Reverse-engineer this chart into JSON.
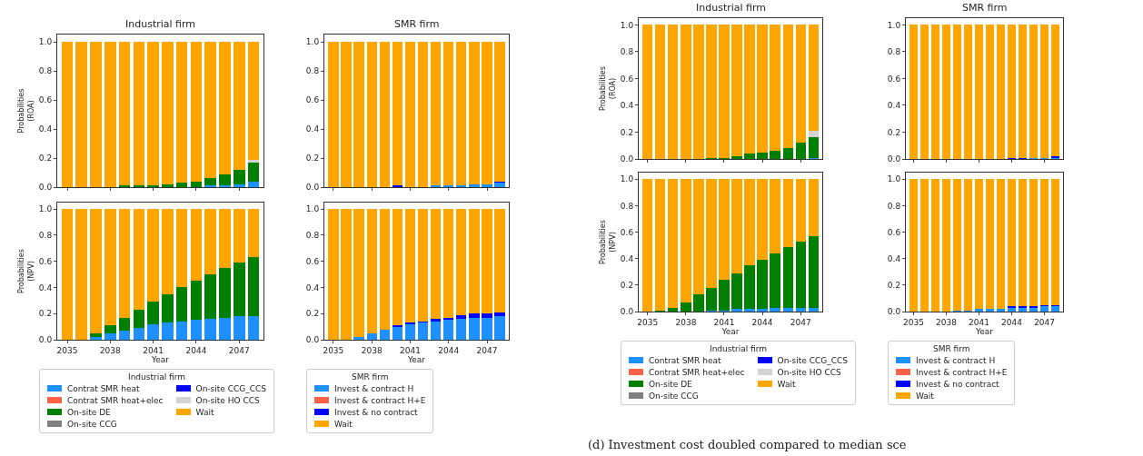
{
  "chart_data": [
    {
      "type": "bar",
      "stacked": true,
      "title": "Industrial firm",
      "ylabel": "Probabilities\n(ROA)",
      "tick_labels": "y",
      "legend": false,
      "x": [
        2035,
        2036,
        2037,
        2038,
        2039,
        2040,
        2041,
        2042,
        2043,
        2044,
        2045,
        2046,
        2047,
        2048
      ],
      "xlim": [
        2034.3,
        2048.7
      ],
      "xticks": [
        2035,
        2038,
        2041,
        2044,
        2047
      ],
      "ylim": [
        0,
        1.05
      ],
      "yticks": [
        {
          "value": 0,
          "label": "0.0"
        },
        {
          "value": 0.2,
          "label": "0.2"
        },
        {
          "value": 0.4,
          "label": "0.4"
        },
        {
          "value": 0.6,
          "label": "0.6"
        },
        {
          "value": 0.8,
          "label": "0.8"
        },
        {
          "value": 1,
          "label": "1.0"
        }
      ],
      "series": [
        {
          "color": "#1e90ff",
          "values": [
            0,
            0,
            0,
            0,
            0,
            0,
            0,
            0,
            0,
            0,
            0.01,
            0.01,
            0.02,
            0.04
          ]
        },
        {
          "color": "#008000",
          "values": [
            0,
            0,
            0,
            0,
            0.01,
            0.01,
            0.01,
            0.02,
            0.03,
            0.04,
            0.05,
            0.08,
            0.1,
            0.13
          ]
        },
        {
          "color": "#d3d3d3",
          "values": [
            0,
            0,
            0,
            0,
            0,
            0,
            0,
            0,
            0,
            0,
            0,
            0,
            0,
            0.02
          ]
        },
        {
          "color": "#ffa500",
          "values": [
            1,
            1,
            1,
            1,
            0.99,
            0.99,
            0.99,
            0.98,
            0.97,
            0.96,
            0.94,
            0.91,
            0.88,
            0.81
          ]
        }
      ]
    },
    {
      "type": "bar",
      "stacked": true,
      "title": "SMR firm",
      "tick_labels": "y",
      "legend": false,
      "x": [
        2035,
        2036,
        2037,
        2038,
        2039,
        2040,
        2041,
        2042,
        2043,
        2044,
        2045,
        2046,
        2047,
        2048
      ],
      "xlim": [
        2034.3,
        2048.7
      ],
      "xticks": [
        2035,
        2038,
        2041,
        2044,
        2047
      ],
      "ylim": [
        0,
        1.05
      ],
      "yticks": [
        {
          "value": 0,
          "label": "0.0"
        },
        {
          "value": 0.2,
          "label": "0.2"
        },
        {
          "value": 0.4,
          "label": "0.4"
        },
        {
          "value": 0.6,
          "label": "0.6"
        },
        {
          "value": 0.8,
          "label": "0.8"
        },
        {
          "value": 1,
          "label": "1.0"
        }
      ],
      "series": [
        {
          "color": "#1e90ff",
          "values": [
            0,
            0,
            0,
            0,
            0,
            0,
            0,
            0,
            0.01,
            0.01,
            0.01,
            0.02,
            0.02,
            0.03
          ]
        },
        {
          "color": "#0000ff",
          "values": [
            0,
            0,
            0,
            0,
            0,
            0.01,
            0,
            0,
            0,
            0,
            0,
            0,
            0,
            0.01
          ]
        },
        {
          "color": "#ffa500",
          "values": [
            1,
            1,
            1,
            1,
            1,
            0.99,
            1,
            1,
            0.99,
            0.99,
            0.99,
            0.98,
            0.98,
            0.96
          ]
        }
      ]
    },
    {
      "type": "bar",
      "stacked": true,
      "ylabel": "Probabilities\n(NPV)",
      "xlabel": "Year",
      "legend": "bottom",
      "legend_title": "Industrial firm",
      "x": [
        2035,
        2036,
        2037,
        2038,
        2039,
        2040,
        2041,
        2042,
        2043,
        2044,
        2045,
        2046,
        2047,
        2048
      ],
      "xlim": [
        2034.3,
        2048.7
      ],
      "xticks": [
        2035,
        2038,
        2041,
        2044,
        2047
      ],
      "ylim": [
        0,
        1.05
      ],
      "yticks": [
        {
          "value": 0,
          "label": "0.0"
        },
        {
          "value": 0.2,
          "label": "0.2"
        },
        {
          "value": 0.4,
          "label": "0.4"
        },
        {
          "value": 0.6,
          "label": "0.6"
        },
        {
          "value": 0.8,
          "label": "0.8"
        },
        {
          "value": 1,
          "label": "1.0"
        }
      ],
      "series": [
        {
          "name": "Contrat SMR heat",
          "color": "#1e90ff",
          "values": [
            0,
            0,
            0.02,
            0.05,
            0.07,
            0.09,
            0.12,
            0.13,
            0.14,
            0.15,
            0.16,
            0.17,
            0.18,
            0.18
          ]
        },
        {
          "name": "Contrat SMR heat+elec",
          "color": "#ff6347",
          "values": [
            0,
            0,
            0,
            0,
            0,
            0,
            0,
            0,
            0,
            0,
            0,
            0,
            0,
            0
          ]
        },
        {
          "name": "On-site DE",
          "color": "#008000",
          "values": [
            0,
            0,
            0.03,
            0.06,
            0.1,
            0.14,
            0.17,
            0.22,
            0.26,
            0.3,
            0.34,
            0.38,
            0.41,
            0.45
          ]
        },
        {
          "name": "On-site CCG",
          "color": "#808080",
          "values": [
            0,
            0,
            0,
            0,
            0,
            0,
            0,
            0,
            0,
            0,
            0,
            0,
            0,
            0
          ]
        },
        {
          "name": "On-site CCG_CCS",
          "color": "#0000ff",
          "values": [
            0,
            0,
            0,
            0,
            0,
            0,
            0,
            0,
            0,
            0,
            0,
            0,
            0,
            0
          ]
        },
        {
          "name": "On-site HO CCS",
          "color": "#d3d3d3",
          "values": [
            0,
            0,
            0,
            0,
            0,
            0,
            0,
            0,
            0,
            0,
            0,
            0,
            0,
            0
          ]
        },
        {
          "name": "Wait",
          "color": "#ffa500",
          "values": [
            1,
            1,
            0.95,
            0.89,
            0.83,
            0.77,
            0.71,
            0.65,
            0.6,
            0.55,
            0.5,
            0.45,
            0.41,
            0.37
          ]
        }
      ]
    },
    {
      "type": "bar",
      "stacked": true,
      "xlabel": "Year",
      "legend": "bottom",
      "legend_title": "SMR firm",
      "x": [
        2035,
        2036,
        2037,
        2038,
        2039,
        2040,
        2041,
        2042,
        2043,
        2044,
        2045,
        2046,
        2047,
        2048
      ],
      "xlim": [
        2034.3,
        2048.7
      ],
      "xticks": [
        2035,
        2038,
        2041,
        2044,
        2047
      ],
      "ylim": [
        0,
        1.05
      ],
      "yticks": [
        {
          "value": 0,
          "label": "0.0"
        },
        {
          "value": 0.2,
          "label": "0.2"
        },
        {
          "value": 0.4,
          "label": "0.4"
        },
        {
          "value": 0.6,
          "label": "0.6"
        },
        {
          "value": 0.8,
          "label": "0.8"
        },
        {
          "value": 1,
          "label": "1.0"
        }
      ],
      "series": [
        {
          "name": "Invest & contract H",
          "color": "#1e90ff",
          "values": [
            0,
            0,
            0.02,
            0.05,
            0.08,
            0.1,
            0.12,
            0.13,
            0.14,
            0.15,
            0.16,
            0.17,
            0.17,
            0.18
          ]
        },
        {
          "name": "Invest & contract H+E",
          "color": "#ff6347",
          "values": [
            0,
            0,
            0,
            0,
            0,
            0,
            0,
            0,
            0,
            0,
            0,
            0,
            0,
            0
          ]
        },
        {
          "name": "Invest & no contract",
          "color": "#0000ff",
          "values": [
            0,
            0,
            0,
            0,
            0,
            0.01,
            0.01,
            0.01,
            0.02,
            0.02,
            0.03,
            0.03,
            0.03,
            0.03
          ]
        },
        {
          "name": "Wait",
          "color": "#ffa500",
          "values": [
            1,
            1,
            0.98,
            0.95,
            0.92,
            0.89,
            0.87,
            0.86,
            0.84,
            0.83,
            0.81,
            0.8,
            0.8,
            0.79
          ]
        }
      ]
    },
    {
      "type": "bar",
      "stacked": true,
      "title": "Industrial firm",
      "ylabel": "Probabilities\n(ROA)",
      "tick_labels": "y",
      "legend": false,
      "x": [
        2035,
        2036,
        2037,
        2038,
        2039,
        2040,
        2041,
        2042,
        2043,
        2044,
        2045,
        2046,
        2047,
        2048
      ],
      "xlim": [
        2034.3,
        2048.7
      ],
      "xticks": [
        2035,
        2038,
        2041,
        2044,
        2047
      ],
      "ylim": [
        0,
        1.05
      ],
      "yticks": [
        {
          "value": 0,
          "label": "0.0"
        },
        {
          "value": 0.2,
          "label": "0.2"
        },
        {
          "value": 0.4,
          "label": "0.4"
        },
        {
          "value": 0.6,
          "label": "0.6"
        },
        {
          "value": 0.8,
          "label": "0.8"
        },
        {
          "value": 1,
          "label": "1.0"
        }
      ],
      "series": [
        {
          "color": "#1e90ff",
          "values": [
            0,
            0,
            0,
            0,
            0,
            0,
            0,
            0,
            0,
            0,
            0,
            0,
            0,
            0.01
          ]
        },
        {
          "color": "#008000",
          "values": [
            0,
            0,
            0,
            0,
            0,
            0.01,
            0.01,
            0.02,
            0.04,
            0.05,
            0.06,
            0.08,
            0.12,
            0.15
          ]
        },
        {
          "color": "#d3d3d3",
          "values": [
            0,
            0,
            0,
            0,
            0,
            0,
            0,
            0,
            0,
            0,
            0,
            0,
            0,
            0.05
          ]
        },
        {
          "color": "#ffa500",
          "values": [
            1,
            1,
            1,
            1,
            1,
            0.99,
            0.99,
            0.98,
            0.96,
            0.95,
            0.94,
            0.92,
            0.88,
            0.79
          ]
        }
      ]
    },
    {
      "type": "bar",
      "stacked": true,
      "title": "SMR firm",
      "tick_labels": "y",
      "legend": false,
      "x": [
        2035,
        2036,
        2037,
        2038,
        2039,
        2040,
        2041,
        2042,
        2043,
        2044,
        2045,
        2046,
        2047,
        2048
      ],
      "xlim": [
        2034.3,
        2048.7
      ],
      "xticks": [
        2035,
        2038,
        2041,
        2044,
        2047
      ],
      "ylim": [
        0,
        1.05
      ],
      "yticks": [
        {
          "value": 0,
          "label": "0.0"
        },
        {
          "value": 0.2,
          "label": "0.2"
        },
        {
          "value": 0.4,
          "label": "0.4"
        },
        {
          "value": 0.6,
          "label": "0.6"
        },
        {
          "value": 0.8,
          "label": "0.8"
        },
        {
          "value": 1,
          "label": "1.0"
        }
      ],
      "series": [
        {
          "color": "#1e90ff",
          "values": [
            0,
            0,
            0,
            0,
            0,
            0,
            0,
            0,
            0,
            0,
            0,
            0.01,
            0.01,
            0.01
          ]
        },
        {
          "color": "#0000ff",
          "values": [
            0,
            0,
            0,
            0,
            0,
            0,
            0,
            0,
            0,
            0.01,
            0.01,
            0,
            0,
            0.01
          ]
        },
        {
          "color": "#ffa500",
          "values": [
            1,
            1,
            1,
            1,
            1,
            1,
            1,
            1,
            1,
            0.99,
            0.99,
            0.99,
            0.99,
            0.98
          ]
        }
      ]
    },
    {
      "type": "bar",
      "stacked": true,
      "ylabel": "Probabilities\n(NPV)",
      "xlabel": "Year",
      "legend": "bottom",
      "legend_title": "Industrial firm",
      "annotations": [
        "(d) Investment cost doubled compared to median sce"
      ],
      "x": [
        2035,
        2036,
        2037,
        2038,
        2039,
        2040,
        2041,
        2042,
        2043,
        2044,
        2045,
        2046,
        2047,
        2048
      ],
      "xlim": [
        2034.3,
        2048.7
      ],
      "xticks": [
        2035,
        2038,
        2041,
        2044,
        2047
      ],
      "ylim": [
        0,
        1.05
      ],
      "yticks": [
        {
          "value": 0,
          "label": "0.0"
        },
        {
          "value": 0.2,
          "label": "0.2"
        },
        {
          "value": 0.4,
          "label": "0.4"
        },
        {
          "value": 0.6,
          "label": "0.6"
        },
        {
          "value": 0.8,
          "label": "0.8"
        },
        {
          "value": 1,
          "label": "1.0"
        }
      ],
      "series": [
        {
          "name": "Contrat SMR heat",
          "color": "#1e90ff",
          "values": [
            0,
            0,
            0,
            0,
            0,
            0.01,
            0.01,
            0.02,
            0.02,
            0.02,
            0.03,
            0.03,
            0.03,
            0.03
          ]
        },
        {
          "name": "Contrat SMR heat+elec",
          "color": "#ff6347",
          "values": [
            0,
            0,
            0,
            0,
            0,
            0,
            0,
            0,
            0,
            0,
            0,
            0,
            0,
            0
          ]
        },
        {
          "name": "On-site DE",
          "color": "#008000",
          "values": [
            0,
            0.01,
            0.03,
            0.07,
            0.13,
            0.17,
            0.23,
            0.27,
            0.33,
            0.37,
            0.41,
            0.46,
            0.5,
            0.54
          ]
        },
        {
          "name": "On-site CCG",
          "color": "#808080",
          "values": [
            0,
            0,
            0,
            0,
            0,
            0,
            0,
            0,
            0,
            0,
            0,
            0,
            0,
            0
          ]
        },
        {
          "name": "On-site CCG_CCS",
          "color": "#0000ff",
          "values": [
            0,
            0,
            0,
            0,
            0,
            0,
            0,
            0,
            0,
            0,
            0,
            0,
            0,
            0
          ]
        },
        {
          "name": "On-site HO CCS",
          "color": "#d3d3d3",
          "values": [
            0,
            0,
            0,
            0,
            0,
            0,
            0,
            0,
            0,
            0,
            0,
            0,
            0,
            0
          ]
        },
        {
          "name": "Wait",
          "color": "#ffa500",
          "values": [
            1,
            0.99,
            0.97,
            0.93,
            0.87,
            0.82,
            0.76,
            0.71,
            0.65,
            0.61,
            0.56,
            0.51,
            0.47,
            0.43
          ]
        }
      ]
    },
    {
      "type": "bar",
      "stacked": true,
      "xlabel": "Year",
      "legend": "bottom",
      "legend_title": "SMR firm",
      "x": [
        2035,
        2036,
        2037,
        2038,
        2039,
        2040,
        2041,
        2042,
        2043,
        2044,
        2045,
        2046,
        2047,
        2048
      ],
      "xlim": [
        2034.3,
        2048.7
      ],
      "xticks": [
        2035,
        2038,
        2041,
        2044,
        2047
      ],
      "ylim": [
        0,
        1.05
      ],
      "yticks": [
        {
          "value": 0,
          "label": "0.0"
        },
        {
          "value": 0.2,
          "label": "0.2"
        },
        {
          "value": 0.4,
          "label": "0.4"
        },
        {
          "value": 0.6,
          "label": "0.6"
        },
        {
          "value": 0.8,
          "label": "0.8"
        },
        {
          "value": 1,
          "label": "1.0"
        }
      ],
      "series": [
        {
          "name": "Invest & contract H",
          "color": "#1e90ff",
          "values": [
            0,
            0,
            0,
            0,
            0.01,
            0.01,
            0.02,
            0.02,
            0.02,
            0.03,
            0.03,
            0.03,
            0.04,
            0.04
          ]
        },
        {
          "name": "Invest & contract H+E",
          "color": "#ff6347",
          "values": [
            0,
            0,
            0,
            0,
            0,
            0,
            0,
            0,
            0,
            0,
            0,
            0,
            0,
            0
          ]
        },
        {
          "name": "Invest & no contract",
          "color": "#0000ff",
          "values": [
            0,
            0,
            0,
            0,
            0,
            0,
            0,
            0,
            0,
            0.01,
            0.01,
            0.01,
            0.01,
            0.01
          ]
        },
        {
          "name": "Wait",
          "color": "#ffa500",
          "values": [
            1,
            1,
            1,
            1,
            0.99,
            0.99,
            0.98,
            0.98,
            0.98,
            0.96,
            0.96,
            0.96,
            0.95,
            0.95
          ]
        }
      ]
    }
  ]
}
